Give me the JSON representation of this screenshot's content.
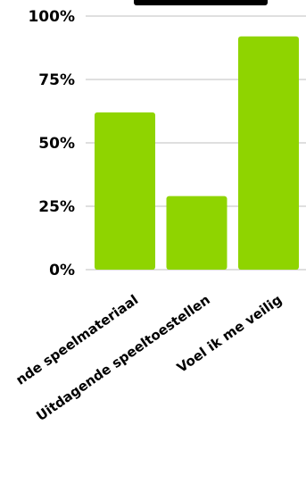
{
  "chart_data": {
    "type": "bar",
    "categories": [
      "Uitdagende speelmateriaal",
      "Uitdagende speeltoestellen",
      "Voel ik me veilig"
    ],
    "visible_category_labels": [
      "nde speelmateriaal",
      "Uitdagende speeltoestellen",
      "Voel ik me veilig"
    ],
    "values": [
      62,
      29,
      92
    ],
    "ylim": [
      0,
      100
    ],
    "yticks": [
      0,
      25,
      50,
      75,
      100
    ],
    "ytick_labels": [
      "0%",
      "25%",
      "50%",
      "75%",
      "100%"
    ],
    "grid": true,
    "legend": "none",
    "bar_color": "#8fd400",
    "gridline_color": "#bfbfbf"
  }
}
